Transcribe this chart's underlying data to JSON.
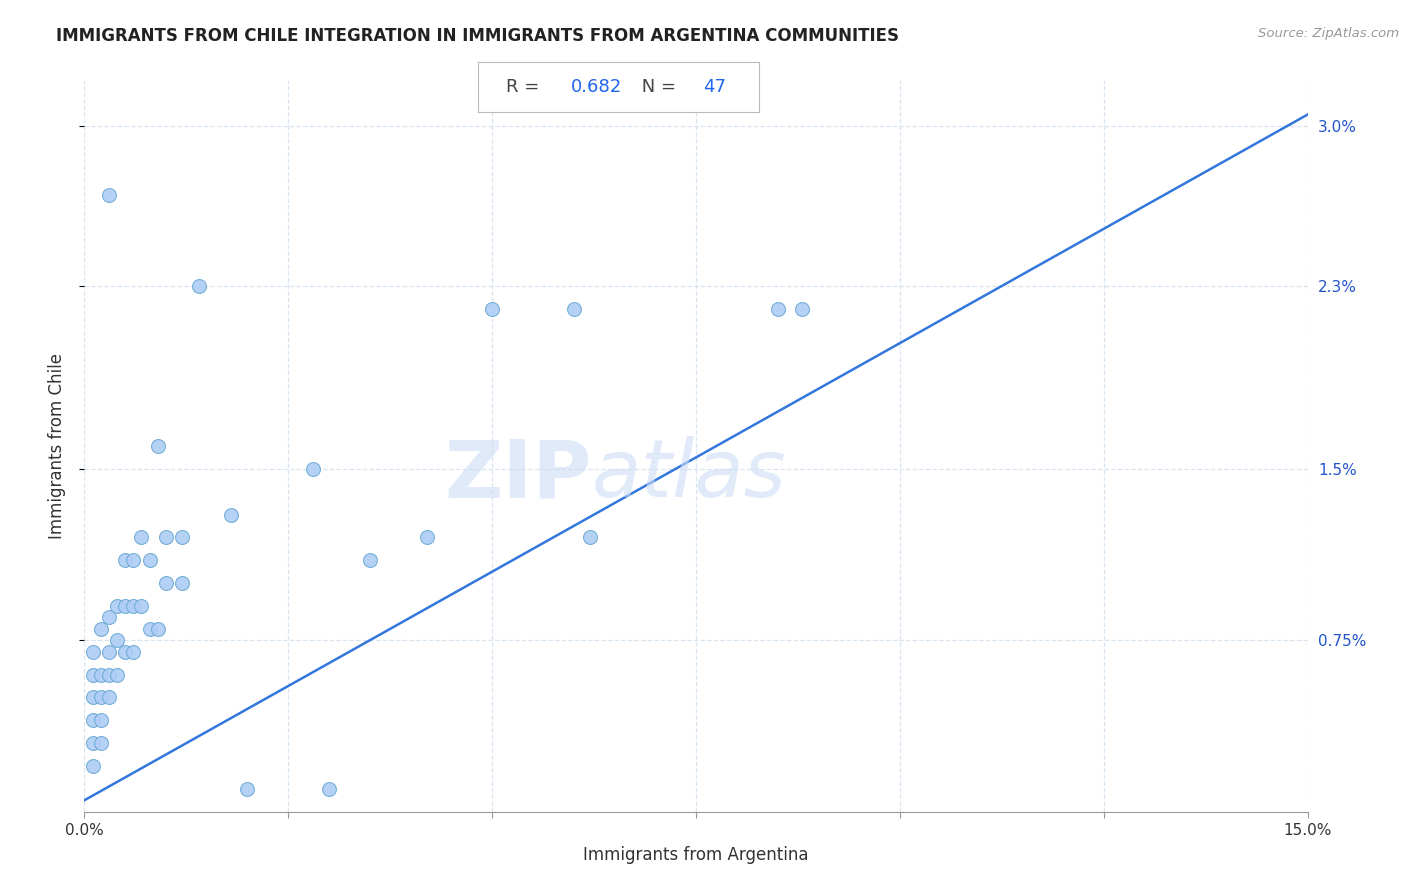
{
  "title": "IMMIGRANTS FROM CHILE INTEGRATION IN IMMIGRANTS FROM ARGENTINA COMMUNITIES",
  "source": "Source: ZipAtlas.com",
  "xlabel": "Immigrants from Argentina",
  "ylabel": "Immigrants from Chile",
  "R": 0.682,
  "N": 47,
  "xlim": [
    0.0,
    0.15
  ],
  "ylim": [
    0.0,
    0.032
  ],
  "ytick_vals": [
    0.0075,
    0.015,
    0.023,
    0.03
  ],
  "ytick_labels": [
    "0.75%",
    "1.5%",
    "2.3%",
    "3.0%"
  ],
  "x_grid": [
    0.0,
    0.025,
    0.05,
    0.075,
    0.1,
    0.125,
    0.15
  ],
  "scatter_color": "#aeccf5",
  "scatter_edge_color": "#6aaad4",
  "line_color": "#3377dd",
  "background_color": "#ffffff",
  "grid_color": "#d8e4f0",
  "scatter_x": [
    0.001,
    0.001,
    0.001,
    0.001,
    0.001,
    0.001,
    0.002,
    0.002,
    0.002,
    0.002,
    0.002,
    0.003,
    0.003,
    0.003,
    0.003,
    0.004,
    0.004,
    0.004,
    0.005,
    0.005,
    0.005,
    0.006,
    0.006,
    0.006,
    0.007,
    0.007,
    0.008,
    0.008,
    0.009,
    0.009,
    0.01,
    0.01,
    0.012,
    0.012,
    0.014,
    0.018,
    0.02,
    0.03,
    0.035,
    0.042,
    0.05,
    0.06,
    0.062,
    0.085,
    0.088,
    0.028,
    0.003
  ],
  "scatter_y": [
    0.002,
    0.003,
    0.004,
    0.005,
    0.006,
    0.007,
    0.003,
    0.004,
    0.005,
    0.006,
    0.008,
    0.005,
    0.006,
    0.007,
    0.0085,
    0.006,
    0.0075,
    0.009,
    0.007,
    0.009,
    0.011,
    0.007,
    0.009,
    0.011,
    0.009,
    0.012,
    0.008,
    0.011,
    0.008,
    0.016,
    0.01,
    0.012,
    0.01,
    0.012,
    0.023,
    0.013,
    0.001,
    0.001,
    0.011,
    0.012,
    0.022,
    0.022,
    0.012,
    0.022,
    0.022,
    0.015,
    0.027
  ],
  "line_x": [
    0.0,
    0.15
  ],
  "line_y": [
    0.0005,
    0.0305
  ]
}
